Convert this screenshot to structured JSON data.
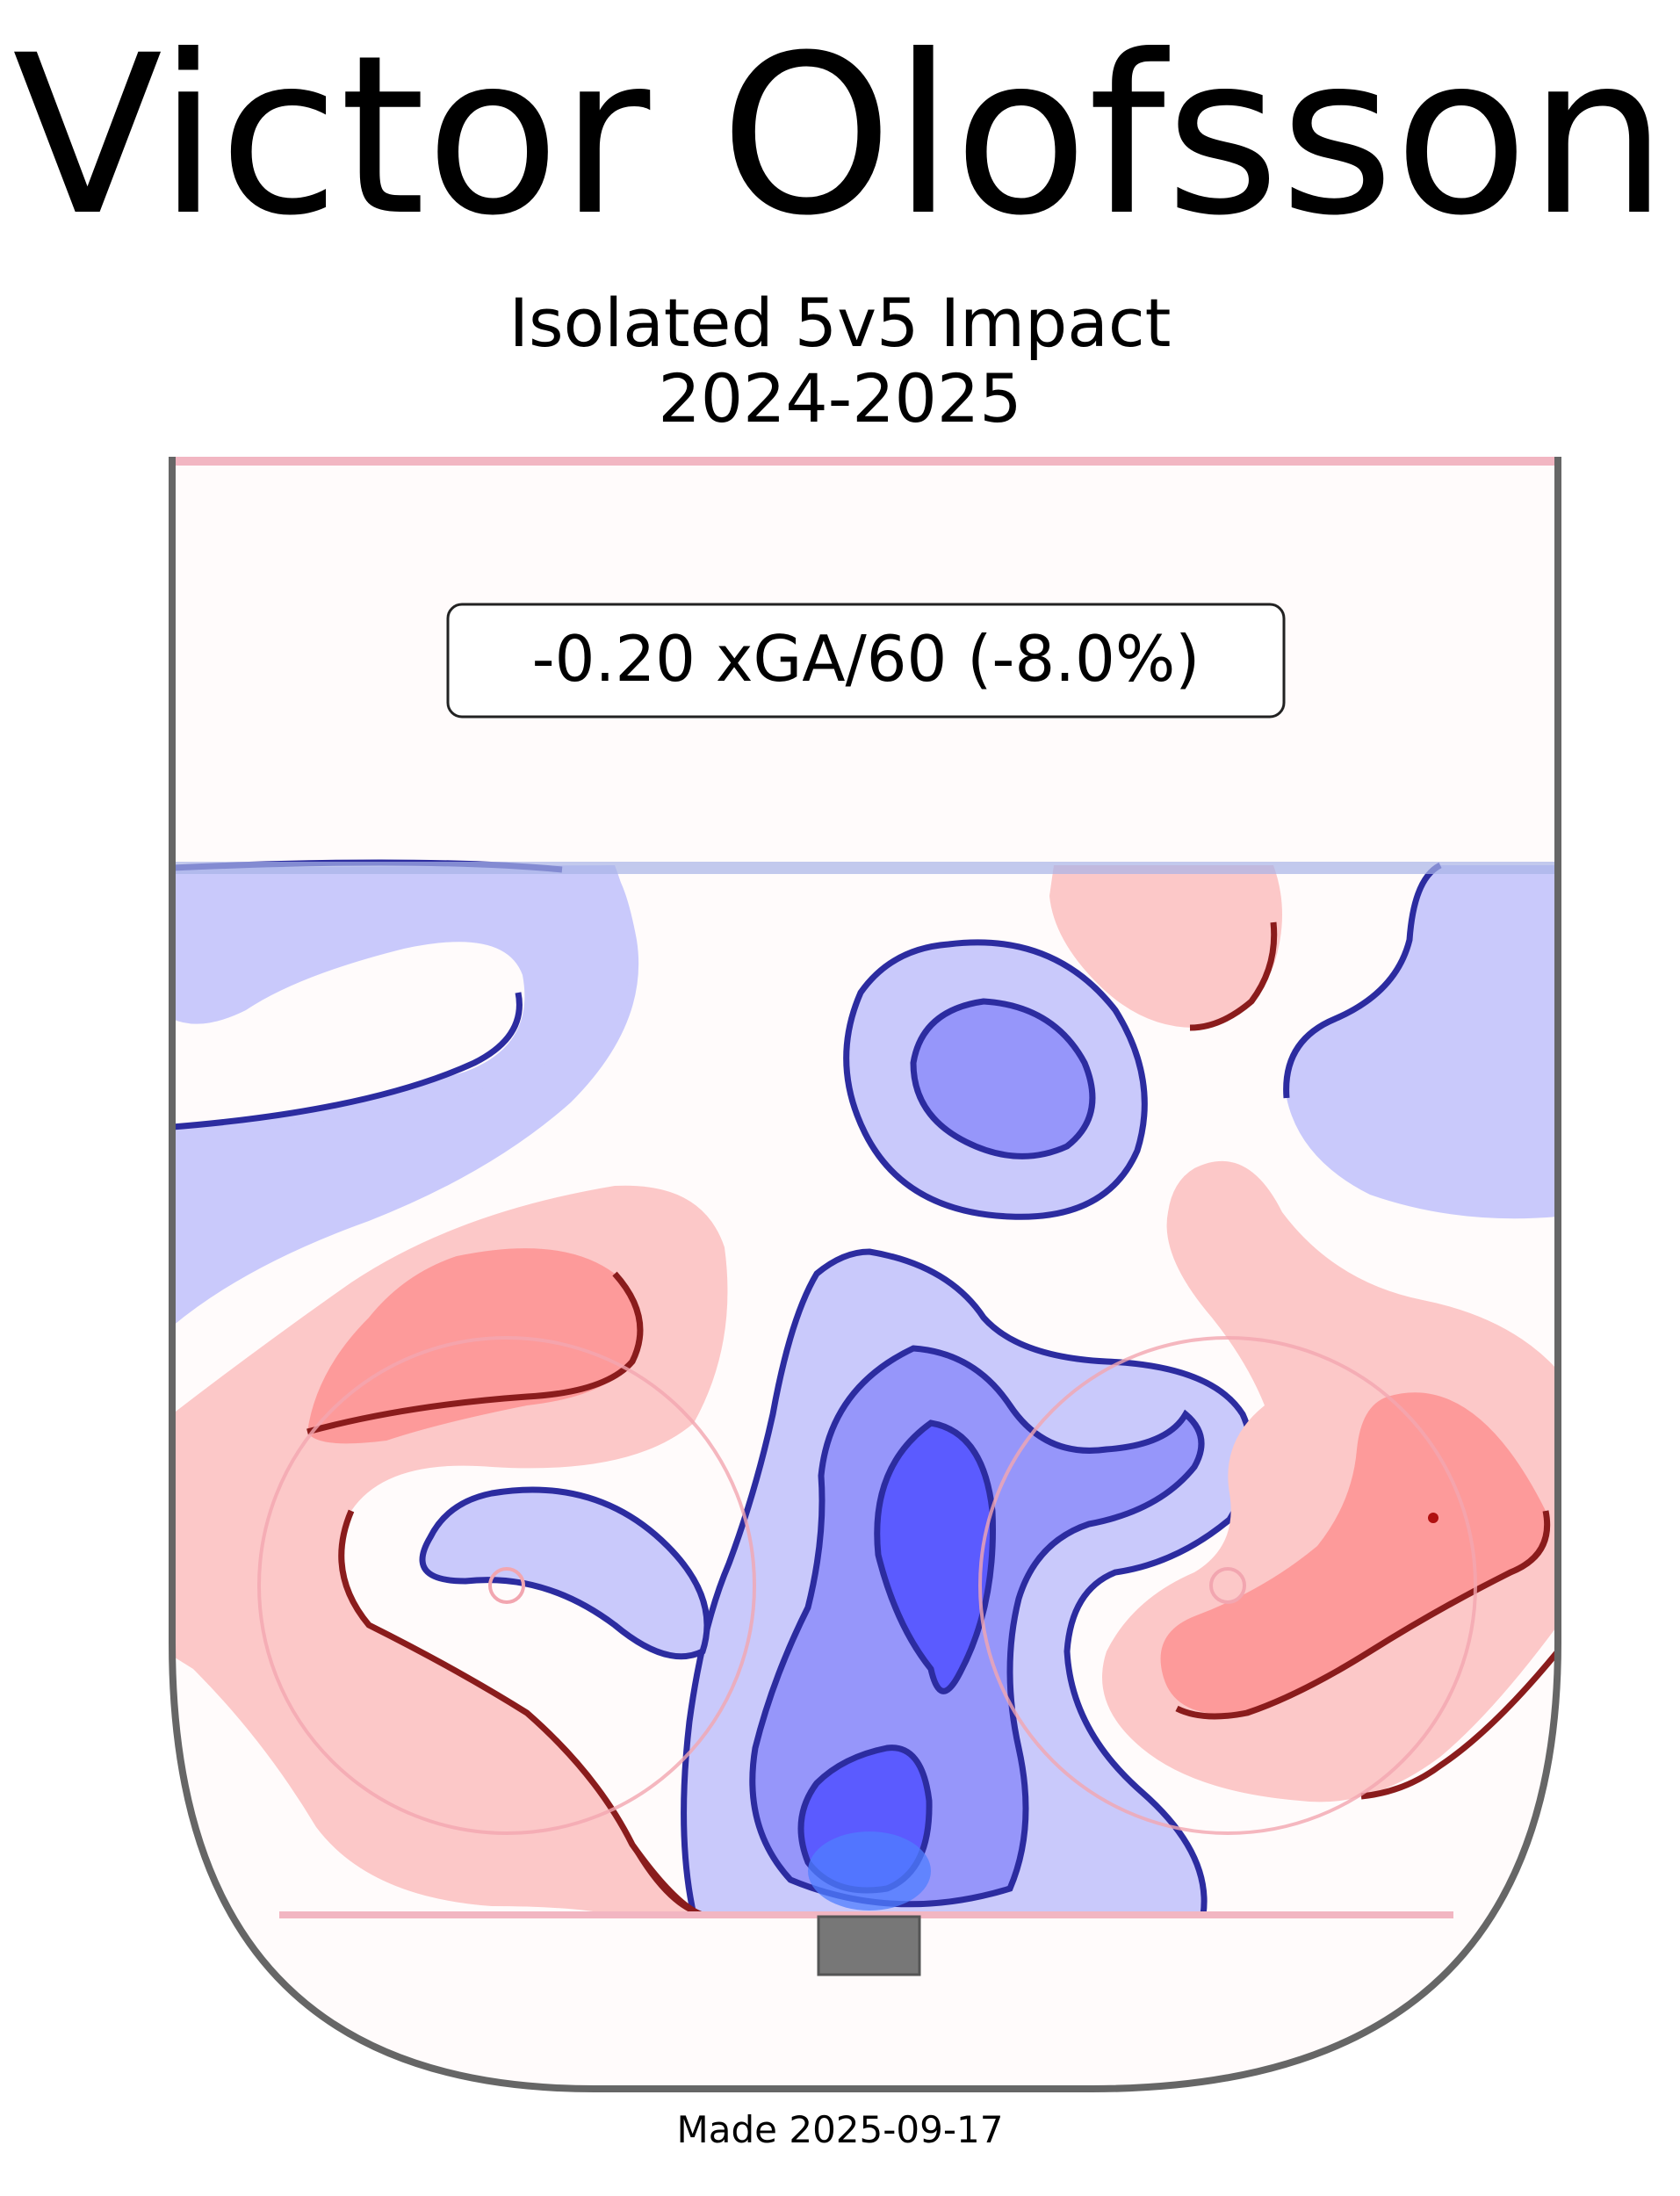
{
  "title": "Victor Olofsson",
  "subtitle_line1": "Isolated 5v5 Impact",
  "subtitle_line2": "2024-2025",
  "footer": "Made 2025-09-17",
  "chart_data": {
    "type": "heatmap",
    "title": "Victor Olofsson",
    "subtitle": [
      "Isolated 5v5 Impact",
      "2024-2025"
    ],
    "annotation": "-0.20 xGA/60 (-8.0%)",
    "metric": "xGA/60",
    "impact_value": -0.2,
    "impact_percent": -8.0,
    "legend": "none",
    "grid": false,
    "colors": {
      "positive_impact": "#ff6b6b",
      "negative_impact": "#5b5bff",
      "rink_outline": "#666666",
      "rink_lines": "#f2b6c2"
    },
    "xlabel": "",
    "ylabel": ""
  }
}
